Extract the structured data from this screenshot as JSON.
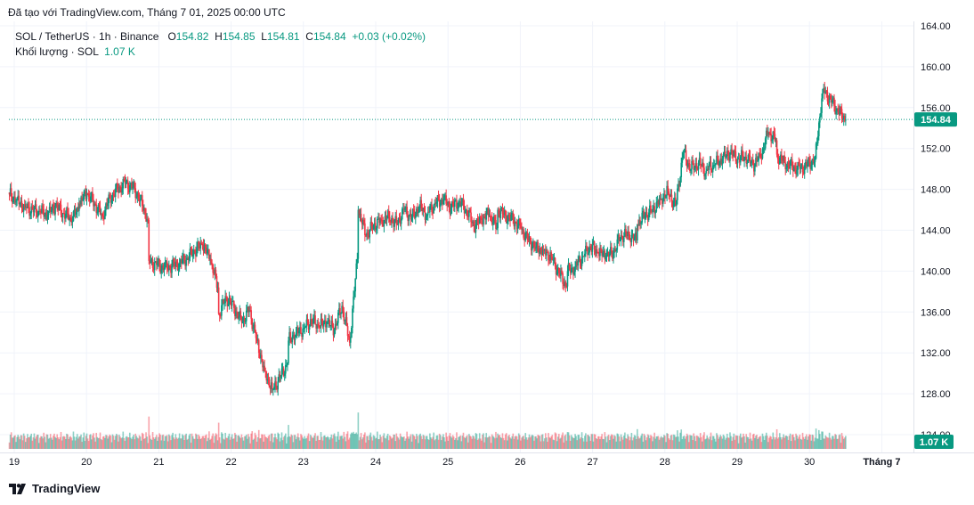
{
  "header": {
    "credit": "Đã tạo với TradingView.com, Tháng 7 01, 2025 00:00 UTC",
    "symbol": "SOL / TetherUS · 1h · Binance",
    "open_label": "O",
    "open": "154.82",
    "high_label": "H",
    "high": "154.85",
    "low_label": "L",
    "low": "154.81",
    "close_label": "C",
    "close": "154.84",
    "change": "+0.03 (+0.02%)",
    "volume_label": "Khối lượng · SOL",
    "volume_value": "1.07 K"
  },
  "footer": {
    "brand": "TradingView"
  },
  "colors": {
    "up": "#089981",
    "down": "#f23645",
    "grid": "#f0f3fa",
    "text": "#131722"
  },
  "chart_data": {
    "type": "candlestick",
    "y_axis_ticks": [
      "164.00",
      "160.00",
      "156.00",
      "152.00",
      "148.00",
      "144.00",
      "140.00",
      "136.00",
      "132.00",
      "128.00",
      "124.00"
    ],
    "ylim": [
      124,
      164
    ],
    "x_axis_ticks": [
      "19",
      "20",
      "21",
      "22",
      "23",
      "24",
      "25",
      "26",
      "27",
      "28",
      "29",
      "30",
      "Tháng 7"
    ],
    "last_price_label": "154.84",
    "last_price": 154.84,
    "volume_badge": "1.07 K",
    "series_close_by_day": [
      {
        "day": "19",
        "close": [
          147.5,
          147.0,
          146.3,
          146.0,
          145.8,
          145.5,
          146.4,
          145.7,
          145.2,
          145.9
        ]
      },
      {
        "day": "20",
        "close": [
          146.6,
          147.6,
          146.6,
          145.4,
          147.1,
          148.0,
          148.6,
          148.2,
          147.0,
          145.0
        ]
      },
      {
        "day": "21",
        "close": [
          141.0,
          140.6,
          140.3,
          140.5,
          140.8,
          141.3,
          142.0,
          142.6,
          141.2,
          138.4
        ]
      },
      {
        "day": "22",
        "close": [
          135.8,
          137.4,
          136.4,
          135.0,
          136.2,
          133.2,
          130.2,
          128.4,
          129.6,
          131.0
        ]
      },
      {
        "day": "23",
        "close": [
          133.2,
          134.0,
          134.4,
          135.2,
          134.6,
          135.0,
          134.3,
          136.6,
          133.0,
          141.2
        ]
      },
      {
        "day": "24",
        "close": [
          146.0,
          143.5,
          144.5,
          145.0,
          145.3,
          144.6,
          146.0,
          145.2,
          146.4,
          145.5
        ]
      },
      {
        "day": "25",
        "close": [
          145.8,
          146.6,
          147.0,
          146.2,
          146.8,
          146.0,
          144.4,
          145.0,
          145.6,
          144.2
        ]
      },
      {
        "day": "26",
        "close": [
          146.0,
          145.4,
          145.0,
          144.2,
          143.0,
          142.3,
          142.0,
          141.4,
          139.8,
          138.5
        ]
      },
      {
        "day": "27",
        "close": [
          140.0,
          140.4,
          141.5,
          142.4,
          141.8,
          141.5,
          141.8,
          143.5,
          143.6,
          143.0
        ]
      },
      {
        "day": "28",
        "close": [
          144.6,
          145.5,
          146.0,
          147.0,
          147.8,
          146.4,
          151.6,
          150.0,
          150.6,
          149.8
        ]
      },
      {
        "day": "29",
        "close": [
          150.0,
          150.4,
          151.0,
          151.6,
          151.0,
          151.2,
          150.4,
          151.2,
          153.6,
          152.8
        ]
      },
      {
        "day": "30",
        "close": [
          151.4,
          150.6,
          150.2,
          150.0,
          150.4,
          151.0,
          157.8,
          156.8,
          155.6,
          154.84
        ]
      }
    ]
  }
}
